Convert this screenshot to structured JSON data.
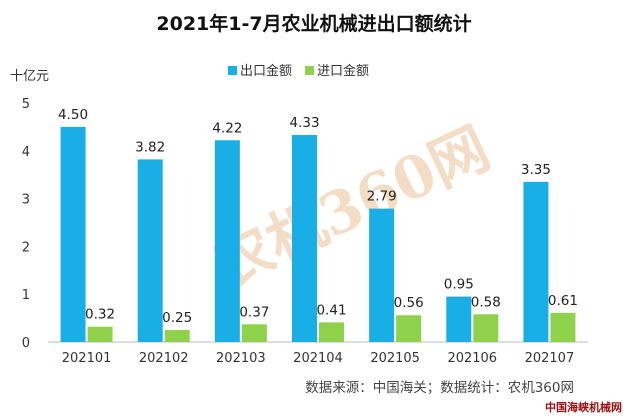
{
  "chart_data": {
    "type": "bar",
    "title": "2021年1-7月农业机械进出口额统计",
    "unit_label": "十亿元",
    "categories": [
      "202101",
      "202102",
      "202103",
      "202104",
      "202105",
      "202106",
      "202107"
    ],
    "series": [
      {
        "name": "出口金额",
        "values": [
          4.5,
          3.82,
          4.22,
          4.33,
          2.79,
          0.95,
          3.35
        ],
        "color": "#1aaee6"
      },
      {
        "name": "进口金额",
        "values": [
          0.32,
          0.25,
          0.37,
          0.41,
          0.56,
          0.58,
          0.61
        ],
        "color": "#8fd14a"
      }
    ],
    "data_labels": [
      [
        "4.50",
        "3.82",
        "4.22",
        "4.33",
        "2.79",
        "0.95",
        "3.35"
      ],
      [
        "0.32",
        "0.25",
        "0.37",
        "0.41",
        "0.56",
        "0.58",
        "0.61"
      ]
    ],
    "ylim": [
      0,
      5
    ],
    "yticks": [
      "0",
      "1",
      "2",
      "3",
      "4",
      "5"
    ],
    "legend_position": "top",
    "grid": false
  },
  "source_note": "数据来源：中国海关；数据统计：农机360网",
  "watermark": "农机360网",
  "corner_mark": "中国海峡机械网"
}
